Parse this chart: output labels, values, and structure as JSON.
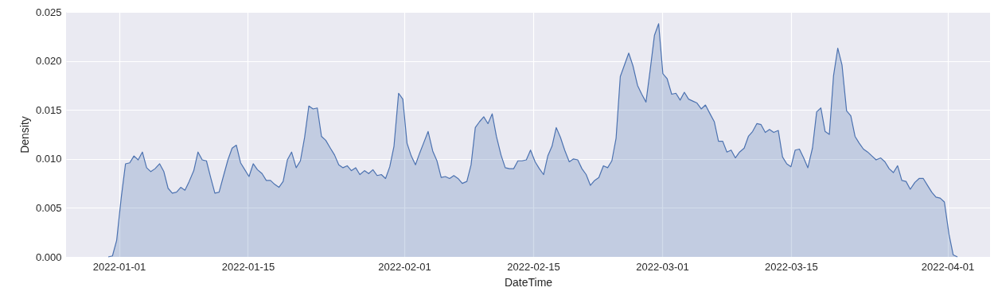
{
  "chart_data": {
    "type": "area",
    "xlabel": "DateTime",
    "ylabel": "Density",
    "grid": true,
    "xlim": [
      "2021-12-26T06:00",
      "2022-04-05T15:00"
    ],
    "xticks": [
      "2022-01-01",
      "2022-01-15",
      "2022-02-01",
      "2022-02-15",
      "2022-03-01",
      "2022-03-15",
      "2022-04-01"
    ],
    "ylim": [
      0,
      0.025
    ],
    "yticks": [
      {
        "value": 0,
        "label": "0.000"
      },
      {
        "value": 0.005,
        "label": "0.005"
      },
      {
        "value": 0.01,
        "label": "0.010"
      },
      {
        "value": 0.015,
        "label": "0.015"
      },
      {
        "value": 0.02,
        "label": "0.020"
      },
      {
        "value": 0.025,
        "label": "0.025"
      }
    ],
    "x": [
      "2021-12-30T20:00",
      "2021-12-31T07:00",
      "2021-12-31T18:00",
      "2022-01-01T06:00",
      "2022-01-01T17:00",
      "2022-01-02T04:00",
      "2022-01-02T15:00",
      "2022-01-03T02:00",
      "2022-01-03T13:00",
      "2022-01-04T00:00",
      "2022-01-04T11:00",
      "2022-01-04T22:00",
      "2022-01-05T10:00",
      "2022-01-05T21:00",
      "2022-01-06T08:00",
      "2022-01-06T19:00",
      "2022-01-07T06:00",
      "2022-01-07T17:00",
      "2022-01-08T04:00",
      "2022-01-08T15:00",
      "2022-01-09T03:00",
      "2022-01-09T14:00",
      "2022-01-10T01:00",
      "2022-01-10T12:00",
      "2022-01-10T23:00",
      "2022-01-11T10:00",
      "2022-01-11T21:00",
      "2022-01-12T08:00",
      "2022-01-12T20:00",
      "2022-01-13T07:00",
      "2022-01-13T18:00",
      "2022-01-14T05:00",
      "2022-01-14T16:00",
      "2022-01-15T03:00",
      "2022-01-15T14:00",
      "2022-01-16T01:00",
      "2022-01-16T13:00",
      "2022-01-17T00:00",
      "2022-01-17T11:00",
      "2022-01-17T22:00",
      "2022-01-18T09:00",
      "2022-01-18T20:00",
      "2022-01-19T07:00",
      "2022-01-19T18:00",
      "2022-01-20T06:00",
      "2022-01-20T17:00",
      "2022-01-21T04:00",
      "2022-01-21T15:00",
      "2022-01-22T02:00",
      "2022-01-22T13:00",
      "2022-01-23T00:00",
      "2022-01-23T11:00",
      "2022-01-23T23:00",
      "2022-01-24T10:00",
      "2022-01-24T21:00",
      "2022-01-25T08:00",
      "2022-01-25T19:00",
      "2022-01-26T06:00",
      "2022-01-26T17:00",
      "2022-01-27T04:00",
      "2022-01-27T16:00",
      "2022-01-28T03:00",
      "2022-01-28T14:00",
      "2022-01-29T01:00",
      "2022-01-29T12:00",
      "2022-01-29T23:00",
      "2022-01-30T10:00",
      "2022-01-30T21:00",
      "2022-01-31T09:00",
      "2022-01-31T20:00",
      "2022-02-01T07:00",
      "2022-02-01T18:00",
      "2022-02-02T05:00",
      "2022-02-02T16:00",
      "2022-02-03T03:00",
      "2022-02-03T14:00",
      "2022-02-04T02:00",
      "2022-02-04T13:00",
      "2022-02-05T00:00",
      "2022-02-05T11:00",
      "2022-02-05T22:00",
      "2022-02-06T09:00",
      "2022-02-06T20:00",
      "2022-02-07T07:00",
      "2022-02-07T19:00",
      "2022-02-08T06:00",
      "2022-02-08T17:00",
      "2022-02-09T04:00",
      "2022-02-09T15:00",
      "2022-02-10T02:00",
      "2022-02-10T13:00",
      "2022-02-11T00:00",
      "2022-02-11T12:00",
      "2022-02-11T23:00",
      "2022-02-12T10:00",
      "2022-02-12T21:00",
      "2022-02-13T08:00",
      "2022-02-13T19:00",
      "2022-02-14T06:00",
      "2022-02-14T17:00",
      "2022-02-15T05:00",
      "2022-02-15T16:00",
      "2022-02-16T03:00",
      "2022-02-16T14:00",
      "2022-02-17T01:00",
      "2022-02-17T12:00",
      "2022-02-17T23:00",
      "2022-02-18T10:00",
      "2022-02-18T22:00",
      "2022-02-19T09:00",
      "2022-02-19T20:00",
      "2022-02-20T07:00",
      "2022-02-20T18:00",
      "2022-02-21T05:00",
      "2022-02-21T16:00",
      "2022-02-22T03:00",
      "2022-02-22T15:00",
      "2022-02-23T02:00",
      "2022-02-23T13:00",
      "2022-02-24T00:00",
      "2022-02-24T11:00",
      "2022-02-24T22:00",
      "2022-02-25T09:00",
      "2022-02-25T20:00",
      "2022-02-26T08:00",
      "2022-02-26T19:00",
      "2022-02-27T06:00",
      "2022-02-27T17:00",
      "2022-02-28T04:00",
      "2022-02-28T15:00",
      "2022-03-01T02:00",
      "2022-03-01T13:00",
      "2022-03-02T01:00",
      "2022-03-02T12:00",
      "2022-03-02T23:00",
      "2022-03-03T10:00",
      "2022-03-03T21:00",
      "2022-03-04T08:00",
      "2022-03-04T19:00",
      "2022-03-05T06:00",
      "2022-03-05T17:00",
      "2022-03-06T05:00",
      "2022-03-06T16:00",
      "2022-03-07T03:00",
      "2022-03-07T14:00",
      "2022-03-08T01:00",
      "2022-03-08T12:00",
      "2022-03-08T23:00",
      "2022-03-09T10:00",
      "2022-03-09T22:00",
      "2022-03-10T09:00",
      "2022-03-10T20:00",
      "2022-03-11T07:00",
      "2022-03-11T18:00",
      "2022-03-12T05:00",
      "2022-03-12T16:00",
      "2022-03-13T03:00",
      "2022-03-13T15:00",
      "2022-03-14T02:00",
      "2022-03-14T13:00",
      "2022-03-15T00:00",
      "2022-03-15T11:00",
      "2022-03-15T22:00",
      "2022-03-16T09:00",
      "2022-03-16T20:00",
      "2022-03-17T08:00",
      "2022-03-17T19:00",
      "2022-03-18T06:00",
      "2022-03-18T17:00",
      "2022-03-19T04:00",
      "2022-03-19T15:00",
      "2022-03-20T02:00",
      "2022-03-20T13:00",
      "2022-03-21T01:00",
      "2022-03-21T12:00",
      "2022-03-21T23:00",
      "2022-03-22T10:00",
      "2022-03-22T21:00",
      "2022-03-23T08:00",
      "2022-03-23T19:00",
      "2022-03-24T06:00",
      "2022-03-24T18:00",
      "2022-03-25T05:00",
      "2022-03-25T16:00",
      "2022-03-26T03:00",
      "2022-03-26T14:00",
      "2022-03-27T01:00",
      "2022-03-27T12:00",
      "2022-03-27T23:00",
      "2022-03-28T11:00",
      "2022-03-28T22:00",
      "2022-03-29T09:00",
      "2022-03-29T20:00",
      "2022-03-30T07:00",
      "2022-03-30T18:00",
      "2022-03-31T05:00",
      "2022-03-31T16:00",
      "2022-04-01T04:00",
      "2022-04-01T15:00",
      "2022-04-02T02:00"
    ],
    "series": [
      {
        "color": "#4c72b0",
        "values": [
          0,
          0.0001,
          0.0017,
          0.0061,
          0.0095,
          0.0096,
          0.0103,
          0.0099,
          0.0107,
          0.0091,
          0.0087,
          0.009,
          0.0095,
          0.0087,
          0.007,
          0.0065,
          0.0066,
          0.0071,
          0.0068,
          0.0077,
          0.0088,
          0.0107,
          0.0099,
          0.0098,
          0.0081,
          0.0065,
          0.0066,
          0.0082,
          0.0099,
          0.0111,
          0.0114,
          0.0096,
          0.0089,
          0.0082,
          0.0095,
          0.0089,
          0.0085,
          0.0078,
          0.0078,
          0.0074,
          0.0071,
          0.0077,
          0.0099,
          0.0107,
          0.0091,
          0.0098,
          0.0122,
          0.0154,
          0.0151,
          0.0152,
          0.0123,
          0.0119,
          0.0111,
          0.0104,
          0.0094,
          0.0091,
          0.0093,
          0.0088,
          0.0091,
          0.0084,
          0.0088,
          0.0085,
          0.0089,
          0.0083,
          0.0084,
          0.008,
          0.0092,
          0.0113,
          0.0167,
          0.0161,
          0.0116,
          0.0103,
          0.0094,
          0.0106,
          0.0117,
          0.0128,
          0.0108,
          0.0098,
          0.0081,
          0.0082,
          0.008,
          0.0083,
          0.008,
          0.0075,
          0.0077,
          0.0094,
          0.0132,
          0.0138,
          0.0143,
          0.0136,
          0.0146,
          0.0123,
          0.0104,
          0.0091,
          0.009,
          0.009,
          0.0098,
          0.0098,
          0.0099,
          0.0109,
          0.0097,
          0.009,
          0.0084,
          0.0103,
          0.0113,
          0.0132,
          0.0122,
          0.0109,
          0.0097,
          0.01,
          0.0099,
          0.009,
          0.0084,
          0.0073,
          0.0078,
          0.0081,
          0.0093,
          0.0091,
          0.0098,
          0.0121,
          0.0184,
          0.0196,
          0.0208,
          0.0195,
          0.0175,
          0.0166,
          0.0158,
          0.0191,
          0.0226,
          0.0238,
          0.0187,
          0.0182,
          0.0166,
          0.0167,
          0.016,
          0.0168,
          0.0161,
          0.0159,
          0.0157,
          0.0151,
          0.0155,
          0.0146,
          0.0138,
          0.0118,
          0.0118,
          0.0107,
          0.0109,
          0.0101,
          0.0107,
          0.0111,
          0.0123,
          0.0128,
          0.0136,
          0.0135,
          0.0127,
          0.013,
          0.0127,
          0.0129,
          0.0102,
          0.0095,
          0.0092,
          0.0109,
          0.011,
          0.0101,
          0.0091,
          0.0111,
          0.0148,
          0.0152,
          0.0128,
          0.0125,
          0.0185,
          0.0213,
          0.0196,
          0.0149,
          0.0144,
          0.0123,
          0.0116,
          0.011,
          0.0107,
          0.0103,
          0.0099,
          0.0101,
          0.0097,
          0.009,
          0.0086,
          0.0093,
          0.0078,
          0.0077,
          0.0069,
          0.0076,
          0.008,
          0.008,
          0.0073,
          0.0066,
          0.0061,
          0.006,
          0.0056,
          0.0023,
          0.0002,
          0
        ]
      }
    ]
  }
}
